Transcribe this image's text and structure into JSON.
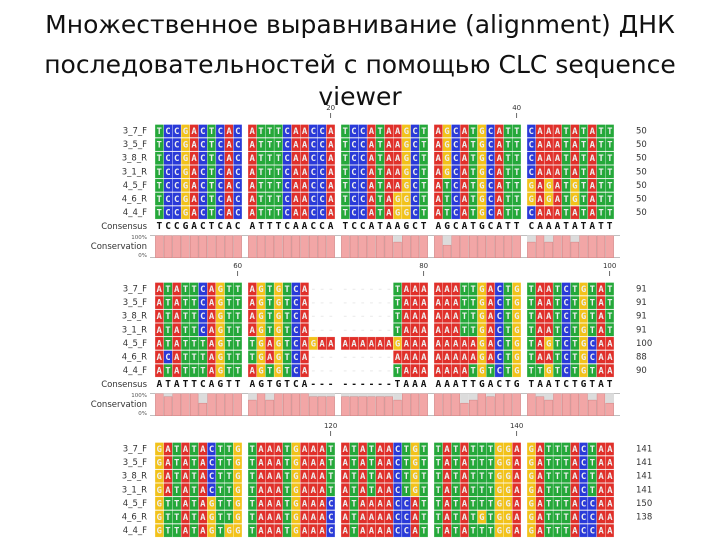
{
  "title": [
    "Множественное выравнивание (alignment) ДНК",
    "последовательностей с помощью CLC  sequence",
    "viewer"
  ],
  "alignment": {
    "labels": {
      "consensus": "Consensus",
      "conservation": "Conservation",
      "max": "100%",
      "min": "0%"
    },
    "sections": [
      {
        "ticks": [
          20,
          40
        ],
        "rows": [
          {
            "name": "3_7_F",
            "blocks": [
              "TCCGACTCAC",
              "ATTTCAACCA",
              "TCCATAAGCT",
              "AGCATGCATT",
              "CAAATATATT"
            ],
            "end": 50
          },
          {
            "name": "3_5_F",
            "blocks": [
              "TCCGACTCAC",
              "ATTTCAACCA",
              "TCCATAAGCT",
              "AGCATGCATT",
              "CAAATATATT"
            ],
            "end": 50
          },
          {
            "name": "3_8_R",
            "blocks": [
              "TCCGACTCAC",
              "ATTTCAACCA",
              "TCCATAAGCT",
              "AGCATGCATT",
              "CAAATATATT"
            ],
            "end": 50
          },
          {
            "name": "3_1_R",
            "blocks": [
              "TCCGACTCAC",
              "ATTTCAACCA",
              "TCCATAAGCT",
              "AGCATGCATT",
              "CAAATATATT"
            ],
            "end": 50
          },
          {
            "name": "4_5_F",
            "blocks": [
              "TCCGACTCAC",
              "ATTTCAACCA",
              "TCCATAAGCT",
              "ATCATGCATT",
              "GAGATGTATT"
            ],
            "end": 50
          },
          {
            "name": "4_6_R",
            "blocks": [
              "TCCGACTCAC",
              "ATTTCAACCA",
              "TCCATAGGCT",
              "ATCATGCATT",
              "GAGATGTATT"
            ],
            "end": 50
          },
          {
            "name": "4_4_F",
            "blocks": [
              "TCCGACTCAC",
              "ATTTCAACCA",
              "TCCATAGGCT",
              "ATCATGCATT",
              "CAAATATATT"
            ],
            "end": 50
          }
        ],
        "consensus": [
          "TCCGACTCAC",
          "ATTTCAACCA",
          "TCCATAAGCT",
          "AGCATGCATT",
          "CAAATATATT"
        ],
        "conservation": [
          100,
          100,
          100,
          100,
          100,
          100,
          100,
          100,
          100,
          100,
          100,
          100,
          100,
          100,
          100,
          100,
          100,
          100,
          100,
          100,
          100,
          100,
          100,
          100,
          100,
          100,
          71,
          100,
          100,
          100,
          100,
          57,
          100,
          100,
          100,
          100,
          100,
          100,
          100,
          100,
          71,
          100,
          71,
          100,
          100,
          71,
          100,
          100,
          100,
          100
        ]
      },
      {
        "ticks": [
          60,
          80,
          100
        ],
        "rows": [
          {
            "name": "3_7_F",
            "blocks": [
              "ATATTCAGTT",
              "AGTGTCA---",
              "------TAAA",
              "AAATTGACTG",
              "TAATCTGTAT"
            ],
            "end": 91
          },
          {
            "name": "3_5_F",
            "blocks": [
              "ATATTCAGTT",
              "AGTGTCA---",
              "------TAAA",
              "AAATTGACTG",
              "TAATCTGTAT"
            ],
            "end": 91
          },
          {
            "name": "3_8_R",
            "blocks": [
              "ATATTCAGTT",
              "AGTGTCA---",
              "------TAAA",
              "AAATTGACTG",
              "TAATCTGTAT"
            ],
            "end": 91
          },
          {
            "name": "3_1_R",
            "blocks": [
              "ATATTCAGTT",
              "AGTGTCA---",
              "------TAAA",
              "AAATTGACTG",
              "TAATCTGTAT"
            ],
            "end": 91
          },
          {
            "name": "4_5_F",
            "blocks": [
              "ATATTTAGTT",
              "TGAGTCAGAA",
              "AAAAAAGAAA",
              "AAAAAGACTG",
              "TAGTCTGCAA"
            ],
            "end": 100
          },
          {
            "name": "4_6_R",
            "blocks": [
              "ACATTTAGTT",
              "TGAGTCA---",
              "------AAAA",
              "AAAAAGACTG",
              "TAATCTGCAA"
            ],
            "end": 88
          },
          {
            "name": "4_4_F",
            "blocks": [
              "ATATTTAGTT",
              "AGTGTCA---",
              "------TAAA",
              "AAAATGTCTG",
              "TTGTCTGTAA"
            ],
            "end": 90
          }
        ],
        "consensus": [
          "ATATTCAGTT",
          "AGTGTCA---",
          "------TAAA",
          "AAATTGACTG",
          "TAATCTGTAT"
        ],
        "conservation": [
          100,
          86,
          100,
          100,
          100,
          57,
          100,
          100,
          100,
          100,
          71,
          100,
          71,
          100,
          100,
          100,
          100,
          86,
          86,
          86,
          86,
          86,
          86,
          86,
          86,
          86,
          71,
          100,
          100,
          100,
          100,
          100,
          100,
          57,
          71,
          100,
          86,
          100,
          100,
          100,
          100,
          86,
          71,
          100,
          100,
          100,
          100,
          71,
          100,
          57
        ]
      },
      {
        "ticks": [
          120,
          140
        ],
        "rows": [
          {
            "name": "3_7_F",
            "blocks": [
              "GATATACTTG",
              "TAAATGAAAT",
              "ATATAACTGT",
              "TATATTTGGA",
              "GATTTACTAA"
            ],
            "end": 141
          },
          {
            "name": "3_5_F",
            "blocks": [
              "GATATACTTG",
              "TAAATGAAAT",
              "ATATAACTGT",
              "TATATTTGGA",
              "GATTTACTAA"
            ],
            "end": 141
          },
          {
            "name": "3_8_R",
            "blocks": [
              "GATATACTTG",
              "TAAATGAAAT",
              "ATATAACTGT",
              "TATATTTGGA",
              "GATTTACTAA"
            ],
            "end": 141
          },
          {
            "name": "3_1_R",
            "blocks": [
              "GATATACTTG",
              "TAAATGAAAT",
              "ATATAACTGT",
              "TATATTTGGA",
              "GATTTACTAA"
            ],
            "end": 141
          },
          {
            "name": "4_5_F",
            "blocks": [
              "GTTATAGTTG",
              "TAAATGAAAC",
              "ATAAAACCAT",
              "TATATTTGGA",
              "GATTTACCAA"
            ],
            "end": 150
          },
          {
            "name": "4_6_R",
            "blocks": [
              "GTTATAGTTG",
              "TAAATGAAAC",
              "ATAAAACCAT",
              "TATATGTGGA",
              "GATTTACCAA"
            ],
            "end": 138
          },
          {
            "name": "4_4_F",
            "blocks": [
              "GTTATAGTGG",
              "TAAATGAAAC",
              "ATAAAACCAT",
              "TATATTTGGA",
              "GATTTACCAA"
            ]
          }
        ]
      }
    ]
  }
}
